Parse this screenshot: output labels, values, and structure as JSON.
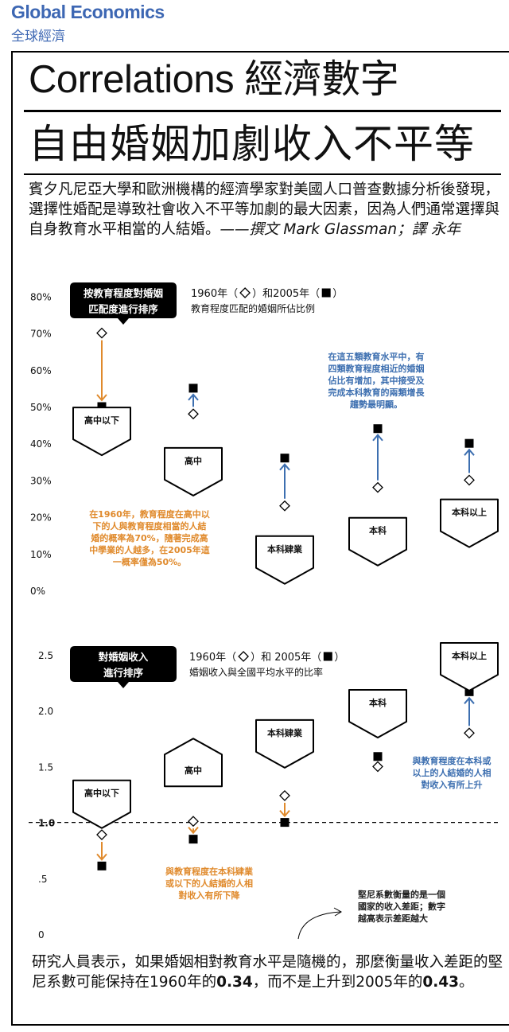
{
  "header": {
    "section_en": "Global Economics",
    "section_zh": "全球經濟"
  },
  "title": {
    "line1": "Correlations 經濟數字",
    "line2": "自由婚姻加劇收入不平等"
  },
  "intro": {
    "text": "賓夕凡尼亞大學和歐洲機構的經濟學家對美國人口普查數據分析後發現，選擇性婚配是導致社會收入不平等加劇的最大因素，因為人們通常選擇與自身教育水平相當的人結婚。",
    "byline": "——撰文 Mark Glassman；譯 永年"
  },
  "colors": {
    "decline": "#e08a2c",
    "increase": "#3d6fb0",
    "accent": "#3d67b3",
    "note_blue": "#3d6fb0",
    "note_orange": "#e08a2c"
  },
  "chart_data": [
    {
      "type": "scatter",
      "title": "按教育程度對婚姻匹配度進行排序",
      "legend": {
        "line1_prefix": "1960年（",
        "line1_mid": "）和2005年（",
        "line1_suffix": "）",
        "line2": "教育程度匹配的婚姻所佔比例",
        "marker_1960": "diamond",
        "marker_2005": "square"
      },
      "yticks": [
        "0%",
        "10%",
        "20%",
        "30%",
        "40%",
        "50%",
        "60%",
        "70%",
        "80%"
      ],
      "ylim": [
        0,
        80
      ],
      "categories": [
        "高中以下",
        "高中",
        "本科肄業",
        "本科",
        "本科以上"
      ],
      "series": [
        {
          "name": "1960年",
          "values": [
            70,
            48,
            23,
            28,
            30
          ]
        },
        {
          "name": "2005年",
          "values": [
            50,
            55,
            36,
            44,
            40
          ]
        }
      ],
      "house_centers": [
        45,
        34,
        10,
        15,
        20
      ],
      "notes": [
        {
          "color": "orange",
          "lines": [
            "在1960年，教育程度在高中以",
            "下的人與教育程度相當的人結",
            "婚的概率為70%，隨著完成高",
            "中學業的人越多，在2005年這",
            "一概率僅為50%。"
          ]
        },
        {
          "color": "blue",
          "lines": [
            "在這五類教育水平中，有",
            "四類教育程度相近的婚姻",
            "佔比有增加，其中接受及",
            "完成本科教育的兩類增長",
            "趨勢最明顯。"
          ]
        }
      ]
    },
    {
      "type": "scatter",
      "title": "對婚姻收入進行排序",
      "legend": {
        "line1_prefix": "1960年（",
        "line1_mid": "）和 2005年（",
        "line1_suffix": "）",
        "line2": "婚姻收入與全國平均水平的比率",
        "marker_1960": "diamond",
        "marker_2005": "square"
      },
      "yticks": [
        "0",
        ".5",
        "1.0",
        "1.5",
        "2.0",
        "2.5"
      ],
      "ylim": [
        0,
        2.5
      ],
      "reference_line": 1.0,
      "categories": [
        "高中以下",
        "高中",
        "本科肄業",
        "本科",
        "本科以上"
      ],
      "series": [
        {
          "name": "1960年",
          "values": [
            0.89,
            1.01,
            1.24,
            1.5,
            1.8
          ]
        },
        {
          "name": "2005年",
          "values": [
            0.61,
            0.85,
            1.0,
            1.59,
            2.17
          ]
        }
      ],
      "house_centers": [
        1.22,
        1.48,
        1.76,
        2.03,
        2.45
      ],
      "notes": [
        {
          "color": "orange",
          "lines": [
            "與教育程度在本科肄業",
            "或以下的人結婚的人相",
            "對收入有所下降"
          ]
        },
        {
          "color": "blue",
          "lines": [
            "與教育程度在本科或",
            "以上的人結婚的人相",
            "對收入有所上升"
          ]
        },
        {
          "color": "black",
          "lines": [
            "堅尼系數衡量的是一個",
            "國家的收入差距；數字",
            "越高表示差距越大"
          ]
        }
      ]
    }
  ],
  "bottom": {
    "text_a": "研究人員表示，如果婚姻相對教育水平是隨機的，那麼衡量收入差距的堅尼系數可能保持在1960年的",
    "val_a": "0.34",
    "text_b": "，而不是上升到2005年的",
    "val_b": "0.43",
    "text_c": "。"
  }
}
